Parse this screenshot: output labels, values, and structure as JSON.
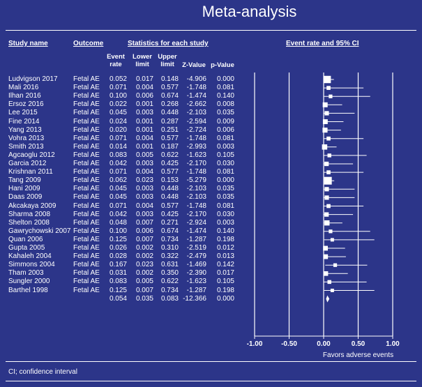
{
  "title": "Meta-analysis",
  "headers": {
    "study_name": "Study name",
    "outcome": "Outcome",
    "stats": "Statistics for each study",
    "plot": "Event rate and 95% CI",
    "event_rate": [
      "Event",
      "rate"
    ],
    "lower": [
      "Lower",
      "limit"
    ],
    "upper": [
      "Upper",
      "limit"
    ],
    "zvalue": "Z-Value",
    "pvalue": "p-Value"
  },
  "rows": [
    {
      "study": "Ludvigson 2017",
      "outcome": "Fetal AE",
      "rate": "0.052",
      "lower": "0.017",
      "upper": "0.148",
      "z": "-4.906",
      "p": "0.000"
    },
    {
      "study": "Mali 2016",
      "outcome": "Fetal AE",
      "rate": "0.071",
      "lower": "0.004",
      "upper": "0.577",
      "z": "-1.748",
      "p": "0.081"
    },
    {
      "study": "Ilhan 2016",
      "outcome": "Fetal AE",
      "rate": "0.100",
      "lower": "0.006",
      "upper": "0.674",
      "z": "-1.474",
      "p": "0.140"
    },
    {
      "study": "Ersoz 2016",
      "outcome": "Fetal AE",
      "rate": "0.022",
      "lower": "0.001",
      "upper": "0.268",
      "z": "-2.662",
      "p": "0.008"
    },
    {
      "study": "Lee 2015",
      "outcome": "Fetal AE",
      "rate": "0.045",
      "lower": "0.003",
      "upper": "0.448",
      "z": "-2.103",
      "p": "0.035"
    },
    {
      "study": "Fine 2014",
      "outcome": "Fetal AE",
      "rate": "0.024",
      "lower": "0.001",
      "upper": "0.287",
      "z": "-2.594",
      "p": "0.009"
    },
    {
      "study": "Yang 2013",
      "outcome": "Fetal AE",
      "rate": "0.020",
      "lower": "0.001",
      "upper": "0.251",
      "z": "-2.724",
      "p": "0.006"
    },
    {
      "study": "Vohra 2013",
      "outcome": "Fetal AE",
      "rate": "0.071",
      "lower": "0.004",
      "upper": "0.577",
      "z": "-1.748",
      "p": "0.081"
    },
    {
      "study": "Smith 2013",
      "outcome": "Fetal AE",
      "rate": "0.014",
      "lower": "0.001",
      "upper": "0.187",
      "z": "-2.993",
      "p": "0.003"
    },
    {
      "study": "Agcaoglu 2012",
      "outcome": "Fetal AE",
      "rate": "0.083",
      "lower": "0.005",
      "upper": "0.622",
      "z": "-1.623",
      "p": "0.105"
    },
    {
      "study": "Garcia 2012",
      "outcome": "Fetal AE",
      "rate": "0.042",
      "lower": "0.003",
      "upper": "0.425",
      "z": "-2.170",
      "p": "0.030"
    },
    {
      "study": "Krishnan 2011",
      "outcome": "Fetal AE",
      "rate": "0.071",
      "lower": "0.004",
      "upper": "0.577",
      "z": "-1.748",
      "p": "0.081"
    },
    {
      "study": "Tang 2009",
      "outcome": "Fetal AE",
      "rate": "0.062",
      "lower": "0.023",
      "upper": "0.153",
      "z": "-5.279",
      "p": "0.000"
    },
    {
      "study": "Hani 2009",
      "outcome": "Fetal AE",
      "rate": "0.045",
      "lower": "0.003",
      "upper": "0.448",
      "z": "-2.103",
      "p": "0.035"
    },
    {
      "study": "Daas 2009",
      "outcome": "Fetal AE",
      "rate": "0.045",
      "lower": "0.003",
      "upper": "0.448",
      "z": "-2.103",
      "p": "0.035"
    },
    {
      "study": "Akcakaya 2009",
      "outcome": "Fetal AE",
      "rate": "0.071",
      "lower": "0.004",
      "upper": "0.577",
      "z": "-1.748",
      "p": "0.081"
    },
    {
      "study": "Sharma 2008",
      "outcome": "Fetal AE",
      "rate": "0.042",
      "lower": "0.003",
      "upper": "0.425",
      "z": "-2.170",
      "p": "0.030"
    },
    {
      "study": "Shelton 2008",
      "outcome": "Fetal AE",
      "rate": "0.048",
      "lower": "0.007",
      "upper": "0.271",
      "z": "-2.924",
      "p": "0.003"
    },
    {
      "study": "Gawrychowski 2007",
      "outcome": "Fetal AE",
      "rate": "0.100",
      "lower": "0.006",
      "upper": "0.674",
      "z": "-1.474",
      "p": "0.140"
    },
    {
      "study": "Quan 2006",
      "outcome": "Fetal AE",
      "rate": "0.125",
      "lower": "0.007",
      "upper": "0.734",
      "z": "-1.287",
      "p": "0.198"
    },
    {
      "study": "Gupta 2005",
      "outcome": "Fetal AE",
      "rate": "0.026",
      "lower": "0.002",
      "upper": "0.310",
      "z": "-2.519",
      "p": "0.012"
    },
    {
      "study": "Kahaleh 2004",
      "outcome": "Fetal AE",
      "rate": "0.028",
      "lower": "0.002",
      "upper": "0.322",
      "z": "-2.479",
      "p": "0.013"
    },
    {
      "study": "Simmons 2004",
      "outcome": "Fetal AE",
      "rate": "0.167",
      "lower": "0.023",
      "upper": "0.631",
      "z": "-1.469",
      "p": "0.142"
    },
    {
      "study": "Tham 2003",
      "outcome": "Fetal AE",
      "rate": "0.031",
      "lower": "0.002",
      "upper": "0.350",
      "z": "-2.390",
      "p": "0.017"
    },
    {
      "study": "Sungler 2000",
      "outcome": "Fetal AE",
      "rate": "0.083",
      "lower": "0.005",
      "upper": "0.622",
      "z": "-1.623",
      "p": "0.105"
    },
    {
      "study": "Barthel 1998",
      "outcome": "Fetal AE",
      "rate": "0.125",
      "lower": "0.007",
      "upper": "0.734",
      "z": "-1.287",
      "p": "0.198"
    }
  ],
  "summary": {
    "rate": "0.054",
    "lower": "0.035",
    "upper": "0.083",
    "z": "-12.366",
    "p": "0.000"
  },
  "footnote": "CI; confidence interval",
  "chart_data": {
    "type": "forest",
    "title": "Event rate and 95% CI",
    "xlim": [
      -1.0,
      1.0
    ],
    "xticks": [
      -1.0,
      -0.5,
      0.0,
      0.5,
      1.0
    ],
    "xtick_labels": [
      "-1.00",
      "-0.50",
      "0.00",
      "0.50",
      "1.00"
    ],
    "xlabel": "Favors adverse events",
    "estimates": [
      0.052,
      0.071,
      0.1,
      0.022,
      0.045,
      0.024,
      0.02,
      0.071,
      0.014,
      0.083,
      0.042,
      0.071,
      0.062,
      0.045,
      0.045,
      0.071,
      0.042,
      0.048,
      0.1,
      0.125,
      0.026,
      0.028,
      0.167,
      0.031,
      0.083,
      0.125
    ],
    "lower": [
      0.017,
      0.004,
      0.006,
      0.001,
      0.003,
      0.001,
      0.001,
      0.004,
      0.001,
      0.005,
      0.003,
      0.004,
      0.023,
      0.003,
      0.003,
      0.004,
      0.003,
      0.007,
      0.006,
      0.007,
      0.002,
      0.002,
      0.023,
      0.002,
      0.005,
      0.007
    ],
    "upper": [
      0.148,
      0.577,
      0.674,
      0.268,
      0.448,
      0.287,
      0.251,
      0.577,
      0.187,
      0.622,
      0.425,
      0.577,
      0.153,
      0.448,
      0.448,
      0.577,
      0.425,
      0.271,
      0.674,
      0.734,
      0.31,
      0.322,
      0.631,
      0.35,
      0.622,
      0.734
    ],
    "z": [
      -4.906,
      -1.748,
      -1.474,
      -2.662,
      -2.103,
      -2.594,
      -2.724,
      -1.748,
      -2.993,
      -1.623,
      -2.17,
      -1.748,
      -5.279,
      -2.103,
      -2.103,
      -1.748,
      -2.17,
      -2.924,
      -1.474,
      -1.287,
      -2.519,
      -2.479,
      -1.469,
      -2.39,
      -1.623,
      -1.287
    ],
    "summary": {
      "estimate": 0.054,
      "lower": 0.035,
      "upper": 0.083
    }
  }
}
